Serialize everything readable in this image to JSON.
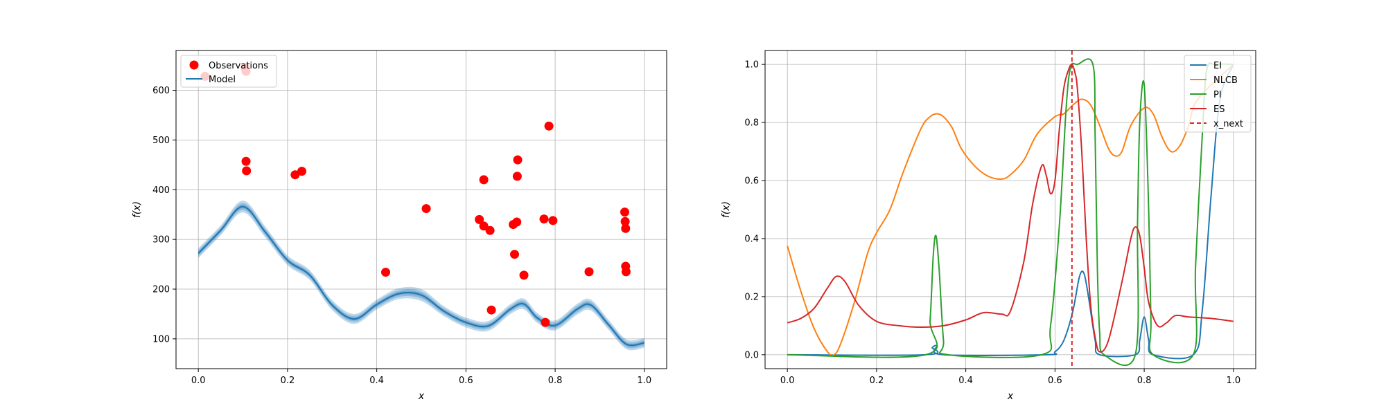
{
  "chart_data": [
    {
      "type": "scatter",
      "title": "",
      "xlabel": "x",
      "ylabel": "f(x)",
      "xlim": [
        -0.05,
        1.05
      ],
      "ylim": [
        40,
        680
      ],
      "xticks": [
        0.0,
        0.2,
        0.4,
        0.6,
        0.8,
        1.0
      ],
      "xtick_labels": [
        "0.0",
        "0.2",
        "0.4",
        "0.6",
        "0.8",
        "1.0"
      ],
      "yticks": [
        100,
        200,
        300,
        400,
        500,
        600
      ],
      "ytick_labels": [
        "100",
        "200",
        "300",
        "400",
        "500",
        "600"
      ],
      "grid": true,
      "legend_position": "top-left",
      "legend": [
        "Observations",
        "Model"
      ],
      "colors": {
        "observations": "#ff0000",
        "model": "#1f77b4",
        "band": "#1f77b4"
      },
      "observations": {
        "name": "Observations",
        "x": [
          0.015,
          0.105,
          0.107,
          0.107,
          0.108,
          0.217,
          0.232,
          0.42,
          0.511,
          0.63,
          0.64,
          0.64,
          0.654,
          0.657,
          0.706,
          0.709,
          0.714,
          0.715,
          0.716,
          0.73,
          0.775,
          0.778,
          0.786,
          0.795,
          0.876,
          0.956,
          0.957,
          0.958,
          0.958,
          0.959
        ],
        "y": [
          628,
          645,
          638,
          457,
          438,
          430,
          437,
          234,
          362,
          340,
          420,
          327,
          318,
          158,
          330,
          270,
          335,
          427,
          460,
          228,
          341,
          133,
          528,
          338,
          235,
          355,
          336,
          322,
          246,
          235
        ]
      },
      "model": {
        "name": "Model",
        "x": [
          0.0,
          0.05,
          0.1,
          0.15,
          0.2,
          0.25,
          0.3,
          0.35,
          0.4,
          0.45,
          0.5,
          0.55,
          0.6,
          0.65,
          0.7,
          0.73,
          0.76,
          0.8,
          0.85,
          0.88,
          0.92,
          0.96,
          1.0
        ],
        "y": [
          272,
          318,
          366,
          315,
          258,
          228,
          168,
          140,
          169,
          191,
          188,
          156,
          133,
          126,
          160,
          170,
          142,
          127,
          160,
          168,
          128,
          89,
          92
        ],
        "band_halfwidth": [
          10,
          10,
          12,
          11,
          10,
          10,
          10,
          10,
          10,
          11,
          12,
          10,
          10,
          10,
          10,
          11,
          10,
          10,
          11,
          11,
          10,
          10,
          10
        ]
      }
    },
    {
      "type": "line",
      "title": "",
      "xlabel": "x",
      "ylabel": "f(x)",
      "xlim": [
        -0.05,
        1.05
      ],
      "ylim": [
        -0.048,
        1.048
      ],
      "xticks": [
        0.0,
        0.2,
        0.4,
        0.6,
        0.8,
        1.0
      ],
      "xtick_labels": [
        "0.0",
        "0.2",
        "0.4",
        "0.6",
        "0.8",
        "1.0"
      ],
      "yticks": [
        0.0,
        0.2,
        0.4,
        0.6,
        0.8,
        1.0
      ],
      "ytick_labels": [
        "0.0",
        "0.2",
        "0.4",
        "0.6",
        "0.8",
        "1.0"
      ],
      "grid": true,
      "legend_position": "top-right",
      "legend": [
        "EI",
        "NLCB",
        "PI",
        "ES",
        "x_next"
      ],
      "series": [
        {
          "name": "EI",
          "color": "#1f77b4",
          "x": [
            0.0,
            0.31,
            0.325,
            0.335,
            0.35,
            0.58,
            0.6,
            0.62,
            0.64,
            0.655,
            0.665,
            0.675,
            0.69,
            0.7,
            0.78,
            0.79,
            0.8,
            0.81,
            0.82,
            0.91,
            0.93,
            0.95,
            0.97,
            1.0
          ],
          "y": [
            0.0,
            0.0,
            0.025,
            0.03,
            0.0,
            0.0,
            0.01,
            0.05,
            0.15,
            0.27,
            0.28,
            0.2,
            0.05,
            0.0,
            0.0,
            0.05,
            0.13,
            0.05,
            0.0,
            0.0,
            0.15,
            0.55,
            0.88,
            1.0
          ]
        },
        {
          "name": "NLCB",
          "color": "#ff7f0e",
          "x": [
            0.0,
            0.03,
            0.06,
            0.09,
            0.105,
            0.12,
            0.15,
            0.18,
            0.2,
            0.23,
            0.26,
            0.3,
            0.32,
            0.335,
            0.35,
            0.37,
            0.39,
            0.42,
            0.45,
            0.48,
            0.5,
            0.53,
            0.56,
            0.6,
            0.62,
            0.64,
            0.66,
            0.68,
            0.7,
            0.72,
            0.735,
            0.75,
            0.77,
            0.8,
            0.82,
            0.84,
            0.86,
            0.88,
            0.9,
            0.92,
            1.0
          ],
          "y": [
            0.375,
            0.22,
            0.09,
            0.01,
            0.0,
            0.04,
            0.18,
            0.35,
            0.42,
            0.5,
            0.63,
            0.78,
            0.82,
            0.83,
            0.82,
            0.78,
            0.71,
            0.65,
            0.615,
            0.605,
            0.62,
            0.67,
            0.76,
            0.82,
            0.83,
            0.86,
            0.88,
            0.86,
            0.79,
            0.71,
            0.685,
            0.7,
            0.79,
            0.85,
            0.83,
            0.75,
            0.7,
            0.72,
            0.79,
            0.88,
            1.0
          ]
        },
        {
          "name": "PI",
          "color": "#2ca02c",
          "x": [
            0.0,
            0.31,
            0.32,
            0.327,
            0.333,
            0.34,
            0.35,
            0.36,
            0.57,
            0.59,
            0.61,
            0.625,
            0.635,
            0.65,
            0.685,
            0.69,
            0.695,
            0.7,
            0.71,
            0.78,
            0.785,
            0.79,
            0.8,
            0.81,
            0.815,
            0.82,
            0.91,
            0.915,
            0.93,
            0.94,
            0.96,
            1.0
          ],
          "y": [
            0.0,
            0.0,
            0.12,
            0.34,
            0.41,
            0.3,
            0.05,
            0.0,
            0.0,
            0.1,
            0.45,
            0.85,
            0.99,
            1.0,
            1.0,
            0.75,
            0.3,
            0.08,
            0.0,
            0.0,
            0.45,
            0.8,
            0.93,
            0.5,
            0.12,
            0.0,
            0.0,
            0.3,
            0.75,
            0.98,
            1.0,
            1.0
          ]
        },
        {
          "name": "ES",
          "color": "#d62728",
          "x": [
            0.0,
            0.03,
            0.06,
            0.09,
            0.11,
            0.13,
            0.16,
            0.2,
            0.25,
            0.3,
            0.35,
            0.4,
            0.44,
            0.48,
            0.5,
            0.53,
            0.55,
            0.57,
            0.58,
            0.59,
            0.6,
            0.61,
            0.62,
            0.63,
            0.638,
            0.645,
            0.65,
            0.66,
            0.67,
            0.68,
            0.69,
            0.7,
            0.72,
            0.75,
            0.77,
            0.78,
            0.79,
            0.8,
            0.81,
            0.83,
            0.85,
            0.87,
            0.9,
            0.95,
            1.0
          ],
          "y": [
            0.11,
            0.125,
            0.16,
            0.23,
            0.27,
            0.25,
            0.17,
            0.115,
            0.1,
            0.095,
            0.1,
            0.12,
            0.145,
            0.14,
            0.15,
            0.32,
            0.52,
            0.65,
            0.62,
            0.555,
            0.6,
            0.78,
            0.92,
            0.98,
            1.0,
            0.97,
            0.92,
            0.7,
            0.4,
            0.17,
            0.06,
            0.01,
            0.05,
            0.25,
            0.4,
            0.44,
            0.41,
            0.3,
            0.18,
            0.1,
            0.11,
            0.135,
            0.13,
            0.125,
            0.115
          ]
        }
      ],
      "x_next": {
        "name": "x_next",
        "value": 0.638,
        "color": "#d62728"
      }
    }
  ]
}
